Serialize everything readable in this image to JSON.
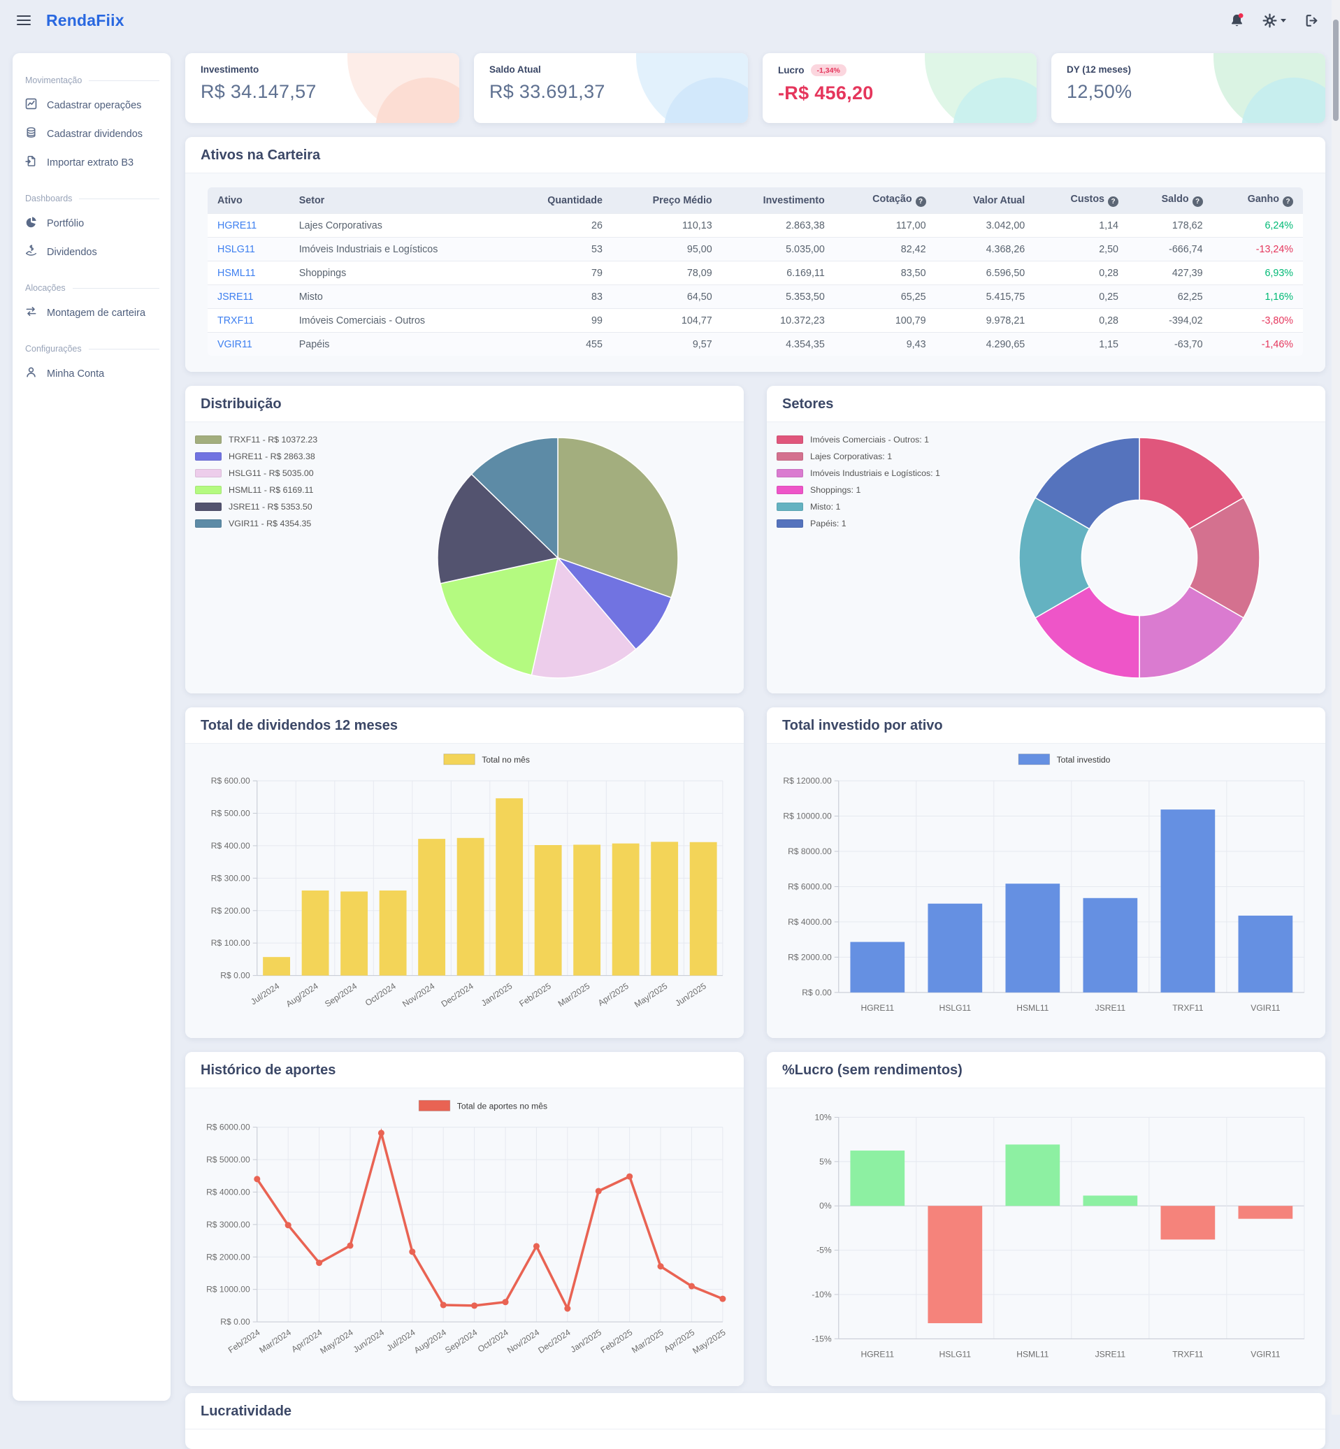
{
  "header": {
    "logo": "RendaFiix"
  },
  "sidebar": {
    "sections": [
      {
        "label": "Movimentação",
        "items": [
          {
            "icon": "chart-line-icon",
            "label": "Cadastrar operações"
          },
          {
            "icon": "coins-icon",
            "label": "Cadastrar dividendos"
          },
          {
            "icon": "file-import-icon",
            "label": "Importar extrato B3"
          }
        ]
      },
      {
        "label": "Dashboards",
        "items": [
          {
            "icon": "pie-chart-icon",
            "label": "Portfólio"
          },
          {
            "icon": "hand-dollar-icon",
            "label": "Dividendos"
          }
        ]
      },
      {
        "label": "Alocações",
        "items": [
          {
            "icon": "exchange-icon",
            "label": "Montagem de carteira"
          }
        ]
      },
      {
        "label": "Configurações",
        "items": [
          {
            "icon": "user-icon",
            "label": "Minha Conta"
          }
        ]
      }
    ]
  },
  "stats": [
    {
      "label": "Investimento",
      "value": "R$ 34.147,57"
    },
    {
      "label": "Saldo Atual",
      "value": "R$ 33.691,37"
    },
    {
      "label": "Lucro",
      "badge": "-1,34%",
      "value": "-R$ 456,20"
    },
    {
      "label": "DY (12 meses)",
      "value": "12,50%"
    }
  ],
  "table": {
    "title": "Ativos na Carteira",
    "columns": [
      {
        "label": "Ativo",
        "align": "left",
        "help": false
      },
      {
        "label": "Setor",
        "align": "left",
        "help": false
      },
      {
        "label": "Quantidade",
        "align": "right",
        "help": false
      },
      {
        "label": "Preço Médio",
        "align": "right",
        "help": false
      },
      {
        "label": "Investimento",
        "align": "right",
        "help": false
      },
      {
        "label": "Cotação",
        "align": "right",
        "help": true
      },
      {
        "label": "Valor Atual",
        "align": "right",
        "help": false
      },
      {
        "label": "Custos",
        "align": "right",
        "help": true
      },
      {
        "label": "Saldo",
        "align": "right",
        "help": true
      },
      {
        "label": "Ganho",
        "align": "right",
        "help": true
      }
    ],
    "rows": [
      {
        "cells": [
          "HGRE11",
          "Lajes Corporativas",
          "26",
          "110,13",
          "2.863,38",
          "117,00",
          "3.042,00",
          "1,14",
          "178,62",
          "6,24%"
        ]
      },
      {
        "cells": [
          "HSLG11",
          "Imóveis Industriais e Logísticos",
          "53",
          "95,00",
          "5.035,00",
          "82,42",
          "4.368,26",
          "2,50",
          "-666,74",
          "-13,24%"
        ]
      },
      {
        "cells": [
          "HSML11",
          "Shoppings",
          "79",
          "78,09",
          "6.169,11",
          "83,50",
          "6.596,50",
          "0,28",
          "427,39",
          "6,93%"
        ]
      },
      {
        "cells": [
          "JSRE11",
          "Misto",
          "83",
          "64,50",
          "5.353,50",
          "65,25",
          "5.415,75",
          "0,25",
          "62,25",
          "1,16%"
        ]
      },
      {
        "cells": [
          "TRXF11",
          "Imóveis Comerciais - Outros",
          "99",
          "104,77",
          "10.372,23",
          "100,79",
          "9.978,21",
          "0,28",
          "-394,02",
          "-3,80%"
        ]
      },
      {
        "cells": [
          "VGIR11",
          "Papéis",
          "455",
          "9,57",
          "4.354,35",
          "9,43",
          "4.290,65",
          "1,15",
          "-63,70",
          "-1,46%"
        ]
      }
    ]
  },
  "lucratividade": {
    "title": "Lucratividade"
  },
  "chart_data": [
    {
      "id": "distribuicao",
      "type": "pie",
      "title": "Distribuição",
      "legend_position": "left",
      "items": [
        {
          "label": "TRXF11 - R$ 10372.23",
          "value": 10372.23,
          "color": "#a3ae7e"
        },
        {
          "label": "HGRE11 - R$ 2863.38",
          "value": 2863.38,
          "color": "#7173e1"
        },
        {
          "label": "HSLG11 - R$ 5035.00",
          "value": 5035.0,
          "color": "#edcdeb"
        },
        {
          "label": "HSML11 - R$ 6169.11",
          "value": 6169.11,
          "color": "#b4fa80"
        },
        {
          "label": "JSRE11 - R$ 5353.50",
          "value": 5353.5,
          "color": "#53536f"
        },
        {
          "label": "VGIR11 - R$ 4354.35",
          "value": 4354.35,
          "color": "#5d8ba6"
        }
      ]
    },
    {
      "id": "setores",
      "type": "donut",
      "title": "Setores",
      "legend_position": "left",
      "items": [
        {
          "label": "Imóveis Comerciais - Outros: 1",
          "value": 1,
          "color": "#e0567c"
        },
        {
          "label": "Lajes Corporativas: 1",
          "value": 1,
          "color": "#d4718f"
        },
        {
          "label": "Imóveis Industriais e Logísticos: 1",
          "value": 1,
          "color": "#da7bd0"
        },
        {
          "label": "Shoppings: 1",
          "value": 1,
          "color": "#ee55c8"
        },
        {
          "label": "Misto: 1",
          "value": 1,
          "color": "#64b2c1"
        },
        {
          "label": "Papéis: 1",
          "value": 1,
          "color": "#5573bd"
        }
      ]
    },
    {
      "id": "dividendos",
      "type": "bar",
      "title": "Total de dividendos 12 meses",
      "legend": "Total no mês",
      "color": "#f3d458",
      "categories": [
        "Jul/2024",
        "Aug/2024",
        "Sep/2024",
        "Oct/2024",
        "Nov/2024",
        "Dec/2024",
        "Jan/2025",
        "Feb/2025",
        "Mar/2025",
        "Apr/2025",
        "May/2025",
        "Jun/2025"
      ],
      "values": [
        57,
        262,
        259,
        262,
        421,
        424,
        546,
        402,
        403,
        407,
        412,
        411
      ],
      "ymin": 0,
      "ymax": 600,
      "ystep": 100,
      "yfmt": "currency",
      "rotate_labels": true
    },
    {
      "id": "investido",
      "type": "bar",
      "title": "Total investido por ativo",
      "legend": "Total investido",
      "color": "#6590e2",
      "categories": [
        "HGRE11",
        "HSLG11",
        "HSML11",
        "JSRE11",
        "TRXF11",
        "VGIR11"
      ],
      "values": [
        2863.38,
        5035.0,
        6169.11,
        5353.5,
        10372.23,
        4354.35
      ],
      "ymin": 0,
      "ymax": 12000,
      "ystep": 2000,
      "yfmt": "currency",
      "rotate_labels": false
    },
    {
      "id": "aportes",
      "type": "line",
      "title": "Histórico de aportes",
      "legend": "Total de aportes no mês",
      "color": "#e96353",
      "categories": [
        "Feb/2024",
        "Mar/2024",
        "Apr/2024",
        "May/2024",
        "Jun/2024",
        "Jul/2024",
        "Aug/2024",
        "Sep/2024",
        "Oct/2024",
        "Nov/2024",
        "Dec/2024",
        "Jan/2025",
        "Feb/2025",
        "Mar/2025",
        "Apr/2025",
        "May/2025"
      ],
      "values": [
        4400,
        2980,
        1820,
        2350,
        5820,
        2160,
        520,
        500,
        610,
        2330,
        410,
        4030,
        4480,
        1710,
        1100,
        710
      ],
      "ymin": 0,
      "ymax": 6000,
      "ystep": 1000,
      "yfmt": "currency",
      "rotate_labels": true
    },
    {
      "id": "lucro",
      "type": "signed-bar",
      "title": "%Lucro (sem rendimentos)",
      "pos_color": "#8df0a2",
      "neg_color": "#f5837b",
      "categories": [
        "HGRE11",
        "HSLG11",
        "HSML11",
        "JSRE11",
        "TRXF11",
        "VGIR11"
      ],
      "values": [
        6.24,
        -13.24,
        6.93,
        1.16,
        -3.8,
        -1.46
      ],
      "ymin": -15,
      "ymax": 10,
      "ystep": 5,
      "yfmt": "percent",
      "rotate_labels": false
    }
  ]
}
